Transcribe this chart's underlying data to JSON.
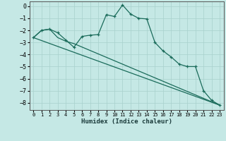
{
  "xlabel": "Humidex (Indice chaleur)",
  "background_color": "#c5e8e5",
  "grid_color": "#a8d0cc",
  "line_color": "#1a6b5a",
  "xlim": [
    -0.5,
    23.5
  ],
  "ylim": [
    -8.6,
    0.4
  ],
  "yticks": [
    0,
    -1,
    -2,
    -3,
    -4,
    -5,
    -6,
    -7,
    -8
  ],
  "xticks": [
    0,
    1,
    2,
    3,
    4,
    5,
    6,
    7,
    8,
    9,
    10,
    11,
    12,
    13,
    14,
    15,
    16,
    17,
    18,
    19,
    20,
    21,
    22,
    23
  ],
  "line1_x": [
    0,
    1,
    2,
    3,
    4,
    5,
    6,
    7,
    8,
    9,
    10,
    11,
    12,
    13,
    14,
    15,
    16,
    17,
    18,
    19,
    20,
    21,
    22,
    23
  ],
  "line1_y": [
    -2.6,
    -2.0,
    -1.9,
    -2.2,
    -2.8,
    -3.4,
    -2.5,
    -2.4,
    -2.35,
    -0.7,
    -0.85,
    0.1,
    -0.65,
    -1.0,
    -1.05,
    -3.0,
    -3.7,
    -4.2,
    -4.8,
    -5.0,
    -5.0,
    -7.0,
    -7.8,
    -8.2
  ],
  "line2_x": [
    0,
    23
  ],
  "line2_y": [
    -2.6,
    -8.2
  ],
  "line3_x": [
    0,
    1,
    2,
    3,
    4,
    5,
    23
  ],
  "line3_y": [
    -2.6,
    -2.0,
    -1.9,
    -2.6,
    -2.9,
    -3.1,
    -8.2
  ]
}
